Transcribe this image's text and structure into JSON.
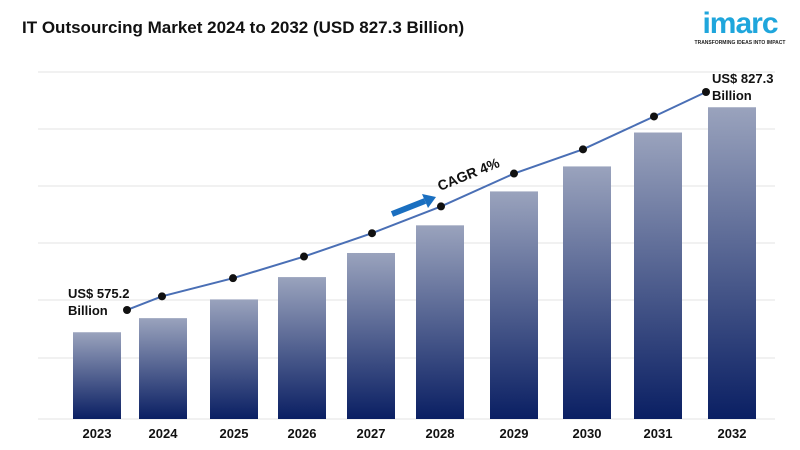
{
  "chart_data": {
    "type": "bar",
    "title": "IT Outsourcing Market 2024 to 2032 (USD 827.3 Billion)",
    "categories": [
      "2023",
      "2024",
      "2025",
      "2026",
      "2027",
      "2028",
      "2029",
      "2030",
      "2031",
      "2032"
    ],
    "values": [
      575.2,
      591,
      612,
      637,
      664,
      695,
      733,
      761,
      799,
      827.3
    ],
    "unit": "US$ Billion",
    "grid": true,
    "annotations": {
      "start_value": "US$ 575.2",
      "start_unit": "Billion",
      "end_value": "US$ 827.3",
      "end_unit": "Billion",
      "cagr": "CAGR 4%"
    },
    "colors": {
      "bar_top": "#9aa3bd",
      "bar_bottom": "#0a1f63",
      "line": "#4a6fb5",
      "marker": "#111111",
      "arrow": "#1a6fc0"
    }
  },
  "logo": {
    "word": "imarc",
    "tagline": "TRANSFORMING IDEAS INTO IMPACT"
  }
}
